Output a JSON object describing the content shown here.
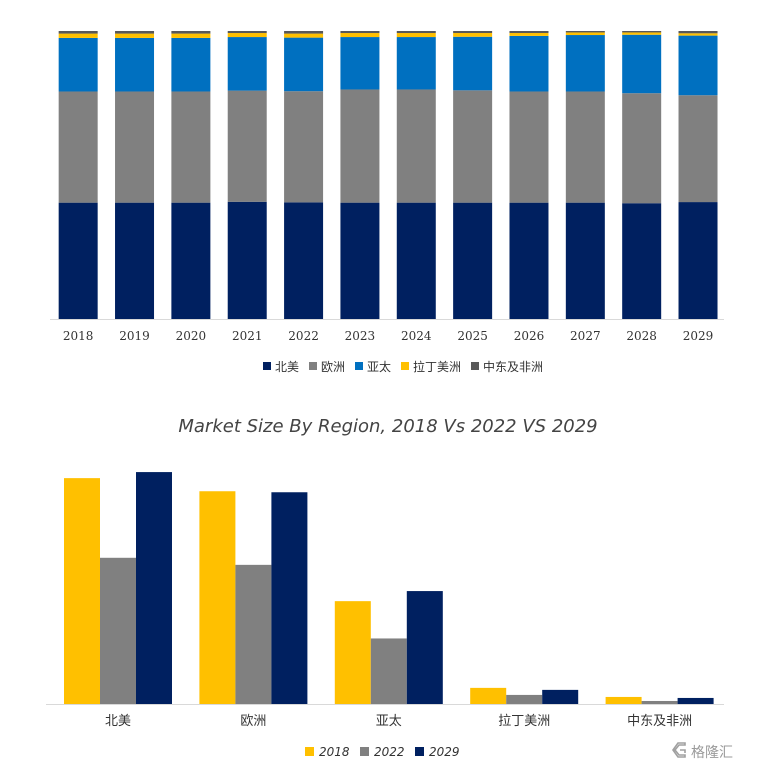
{
  "chart_data": [
    {
      "type": "bar",
      "stacked": true,
      "percent": true,
      "title": "",
      "categories": [
        "2018",
        "2019",
        "2020",
        "2021",
        "2022",
        "2023",
        "2024",
        "2025",
        "2026",
        "2027",
        "2028",
        "2029"
      ],
      "series": [
        {
          "name": "北美",
          "color": "#002060",
          "values": [
            40.4,
            40.4,
            40.4,
            40.7,
            40.5,
            40.4,
            40.4,
            40.4,
            40.4,
            40.4,
            40.2,
            40.6
          ]
        },
        {
          "name": "欧洲",
          "color": "#808080",
          "values": [
            38.6,
            38.6,
            38.6,
            38.6,
            38.6,
            39.3,
            39.3,
            39.0,
            38.6,
            38.6,
            38.2,
            37.1
          ]
        },
        {
          "name": "亚太",
          "color": "#0070C0",
          "values": [
            18.6,
            18.6,
            18.6,
            18.6,
            18.6,
            18.2,
            18.2,
            18.6,
            19.3,
            19.6,
            20.3,
            20.7
          ]
        },
        {
          "name": "拉丁美洲",
          "color": "#FFC000",
          "values": [
            1.5,
            1.5,
            1.5,
            1.4,
            1.4,
            1.4,
            1.4,
            1.3,
            1.0,
            0.9,
            0.8,
            0.8
          ]
        },
        {
          "name": "中东及非洲",
          "color": "#595959",
          "values": [
            0.9,
            0.9,
            0.9,
            0.7,
            0.9,
            0.7,
            0.7,
            0.7,
            0.7,
            0.5,
            0.5,
            0.8
          ]
        }
      ],
      "legend_position": "bottom"
    },
    {
      "type": "bar",
      "title": "Market Size By Region, 2018 Vs 2022 VS 2029",
      "categories": [
        "北美",
        "欧洲",
        "亚太",
        "拉丁美洲",
        "中东及非洲"
      ],
      "series": [
        {
          "name": "2018",
          "color": "#FFC000",
          "values": [
            224,
            211,
            102,
            16,
            7
          ]
        },
        {
          "name": "2022",
          "color": "#808080",
          "values": [
            145,
            138,
            65,
            9,
            3
          ]
        },
        {
          "name": "2029",
          "color": "#002060",
          "values": [
            230,
            210,
            112,
            14,
            6
          ]
        }
      ],
      "ylim": [
        0,
        240
      ],
      "legend_position": "bottom"
    }
  ],
  "watermark": {
    "text": "格隆汇",
    "icon": "gelonghui-logo-icon"
  }
}
